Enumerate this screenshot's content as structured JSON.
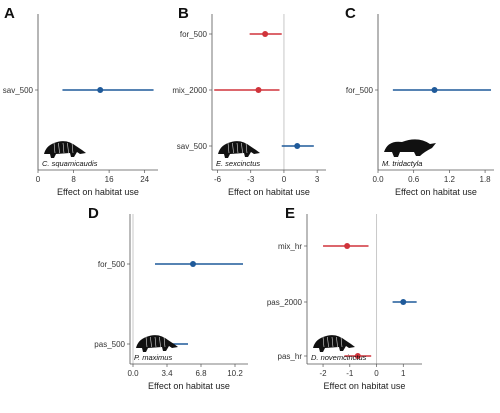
{
  "colors": {
    "positive": "#1f5a9a",
    "negative": "#d0333b"
  },
  "chart_data": [
    {
      "type": "scatter",
      "panel": "A",
      "species": "C. squamicaudis",
      "xlabel": "Effect on habitat use",
      "xlim": [
        0,
        27
      ],
      "xticks": [
        0,
        8,
        16,
        24
      ],
      "xtick_labels": [
        "0",
        "8",
        "16",
        "24"
      ],
      "categories": [
        "sav_500"
      ],
      "estimates": [
        14
      ],
      "lower": [
        5.5
      ],
      "upper": [
        26
      ],
      "series_color": [
        "positive"
      ]
    },
    {
      "type": "scatter",
      "panel": "B",
      "species": "E. sexcinctus",
      "xlabel": "Effect on habitat use",
      "xlim": [
        -6.5,
        3.8
      ],
      "xticks": [
        -6,
        -3,
        0,
        3
      ],
      "xtick_labels": [
        "-6",
        "-3",
        "0",
        "3"
      ],
      "categories": [
        "for_500",
        "mix_2000",
        "sav_500"
      ],
      "estimates": [
        -1.7,
        -2.3,
        1.2
      ],
      "lower": [
        -3.1,
        -6.3,
        -0.2
      ],
      "upper": [
        -0.2,
        -0.4,
        2.7
      ],
      "series_color": [
        "negative",
        "negative",
        "positive"
      ]
    },
    {
      "type": "scatter",
      "panel": "C",
      "species": "M. tridactyla",
      "xlabel": "Effect on habitat use",
      "xlim": [
        0,
        1.95
      ],
      "xticks": [
        0,
        0.6,
        1.2,
        1.8
      ],
      "xtick_labels": [
        "0.0",
        "0.6",
        "1.2",
        "1.8"
      ],
      "categories": [
        "for_500"
      ],
      "estimates": [
        0.95
      ],
      "lower": [
        0.25
      ],
      "upper": [
        1.9
      ],
      "series_color": [
        "positive"
      ]
    },
    {
      "type": "scatter",
      "panel": "D",
      "species": "P. maximus",
      "xlabel": "Effect on habitat use",
      "xlim": [
        -0.3,
        11.5
      ],
      "xticks": [
        0,
        3.4,
        6.8,
        10.2
      ],
      "xtick_labels": [
        "0.0",
        "3.4",
        "6.8",
        "10.2"
      ],
      "categories": [
        "for_500",
        "pas_500"
      ],
      "estimates": [
        6,
        3.1
      ],
      "lower": [
        2.2,
        1.2
      ],
      "upper": [
        11,
        5.5
      ],
      "series_color": [
        "positive",
        "positive"
      ]
    },
    {
      "type": "scatter",
      "panel": "E",
      "species": "D. novemcinctus",
      "xlabel": "Effect on habitat use",
      "xlim": [
        -2.6,
        1.7
      ],
      "xticks": [
        -2,
        -1,
        0,
        1
      ],
      "xtick_labels": [
        "-2",
        "-1",
        "0",
        "1"
      ],
      "categories": [
        "mix_hr",
        "pas_2000",
        "pas_hr"
      ],
      "estimates": [
        -1.1,
        1,
        -0.7
      ],
      "lower": [
        -2,
        0.6,
        -1.2
      ],
      "upper": [
        -0.3,
        1.5,
        -0.2
      ],
      "series_color": [
        "negative",
        "positive",
        "negative"
      ]
    }
  ]
}
